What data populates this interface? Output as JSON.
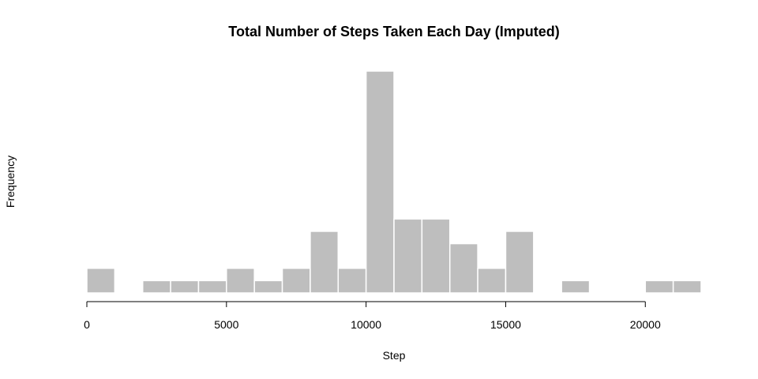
{
  "chart_data": {
    "type": "bar",
    "title": "Total Number of Steps Taken Each Day (Imputed)",
    "xlabel": "Step",
    "ylabel": "Frequency",
    "bar_color": "#bebebe",
    "bar_border_color": "#ffffff",
    "bin_width": 1000,
    "xlim": [
      0,
      22000
    ],
    "ylim": [
      0,
      18
    ],
    "x_ticks": [
      0,
      5000,
      10000,
      15000,
      20000
    ],
    "x_tick_labels": [
      "0",
      "5000",
      "10000",
      "15000",
      "20000"
    ],
    "y_axis_visible": false,
    "grid": false,
    "bins": [
      {
        "start": 0,
        "end": 1000,
        "count": 2
      },
      {
        "start": 1000,
        "end": 2000,
        "count": 0
      },
      {
        "start": 2000,
        "end": 3000,
        "count": 1
      },
      {
        "start": 3000,
        "end": 4000,
        "count": 1
      },
      {
        "start": 4000,
        "end": 5000,
        "count": 1
      },
      {
        "start": 5000,
        "end": 6000,
        "count": 2
      },
      {
        "start": 6000,
        "end": 7000,
        "count": 1
      },
      {
        "start": 7000,
        "end": 8000,
        "count": 2
      },
      {
        "start": 8000,
        "end": 9000,
        "count": 5
      },
      {
        "start": 9000,
        "end": 10000,
        "count": 2
      },
      {
        "start": 10000,
        "end": 11000,
        "count": 18
      },
      {
        "start": 11000,
        "end": 12000,
        "count": 6
      },
      {
        "start": 12000,
        "end": 13000,
        "count": 6
      },
      {
        "start": 13000,
        "end": 14000,
        "count": 4
      },
      {
        "start": 14000,
        "end": 15000,
        "count": 2
      },
      {
        "start": 15000,
        "end": 16000,
        "count": 5
      },
      {
        "start": 16000,
        "end": 17000,
        "count": 0
      },
      {
        "start": 17000,
        "end": 18000,
        "count": 1
      },
      {
        "start": 18000,
        "end": 19000,
        "count": 0
      },
      {
        "start": 19000,
        "end": 20000,
        "count": 0
      },
      {
        "start": 20000,
        "end": 21000,
        "count": 1
      },
      {
        "start": 21000,
        "end": 22000,
        "count": 1
      }
    ]
  }
}
